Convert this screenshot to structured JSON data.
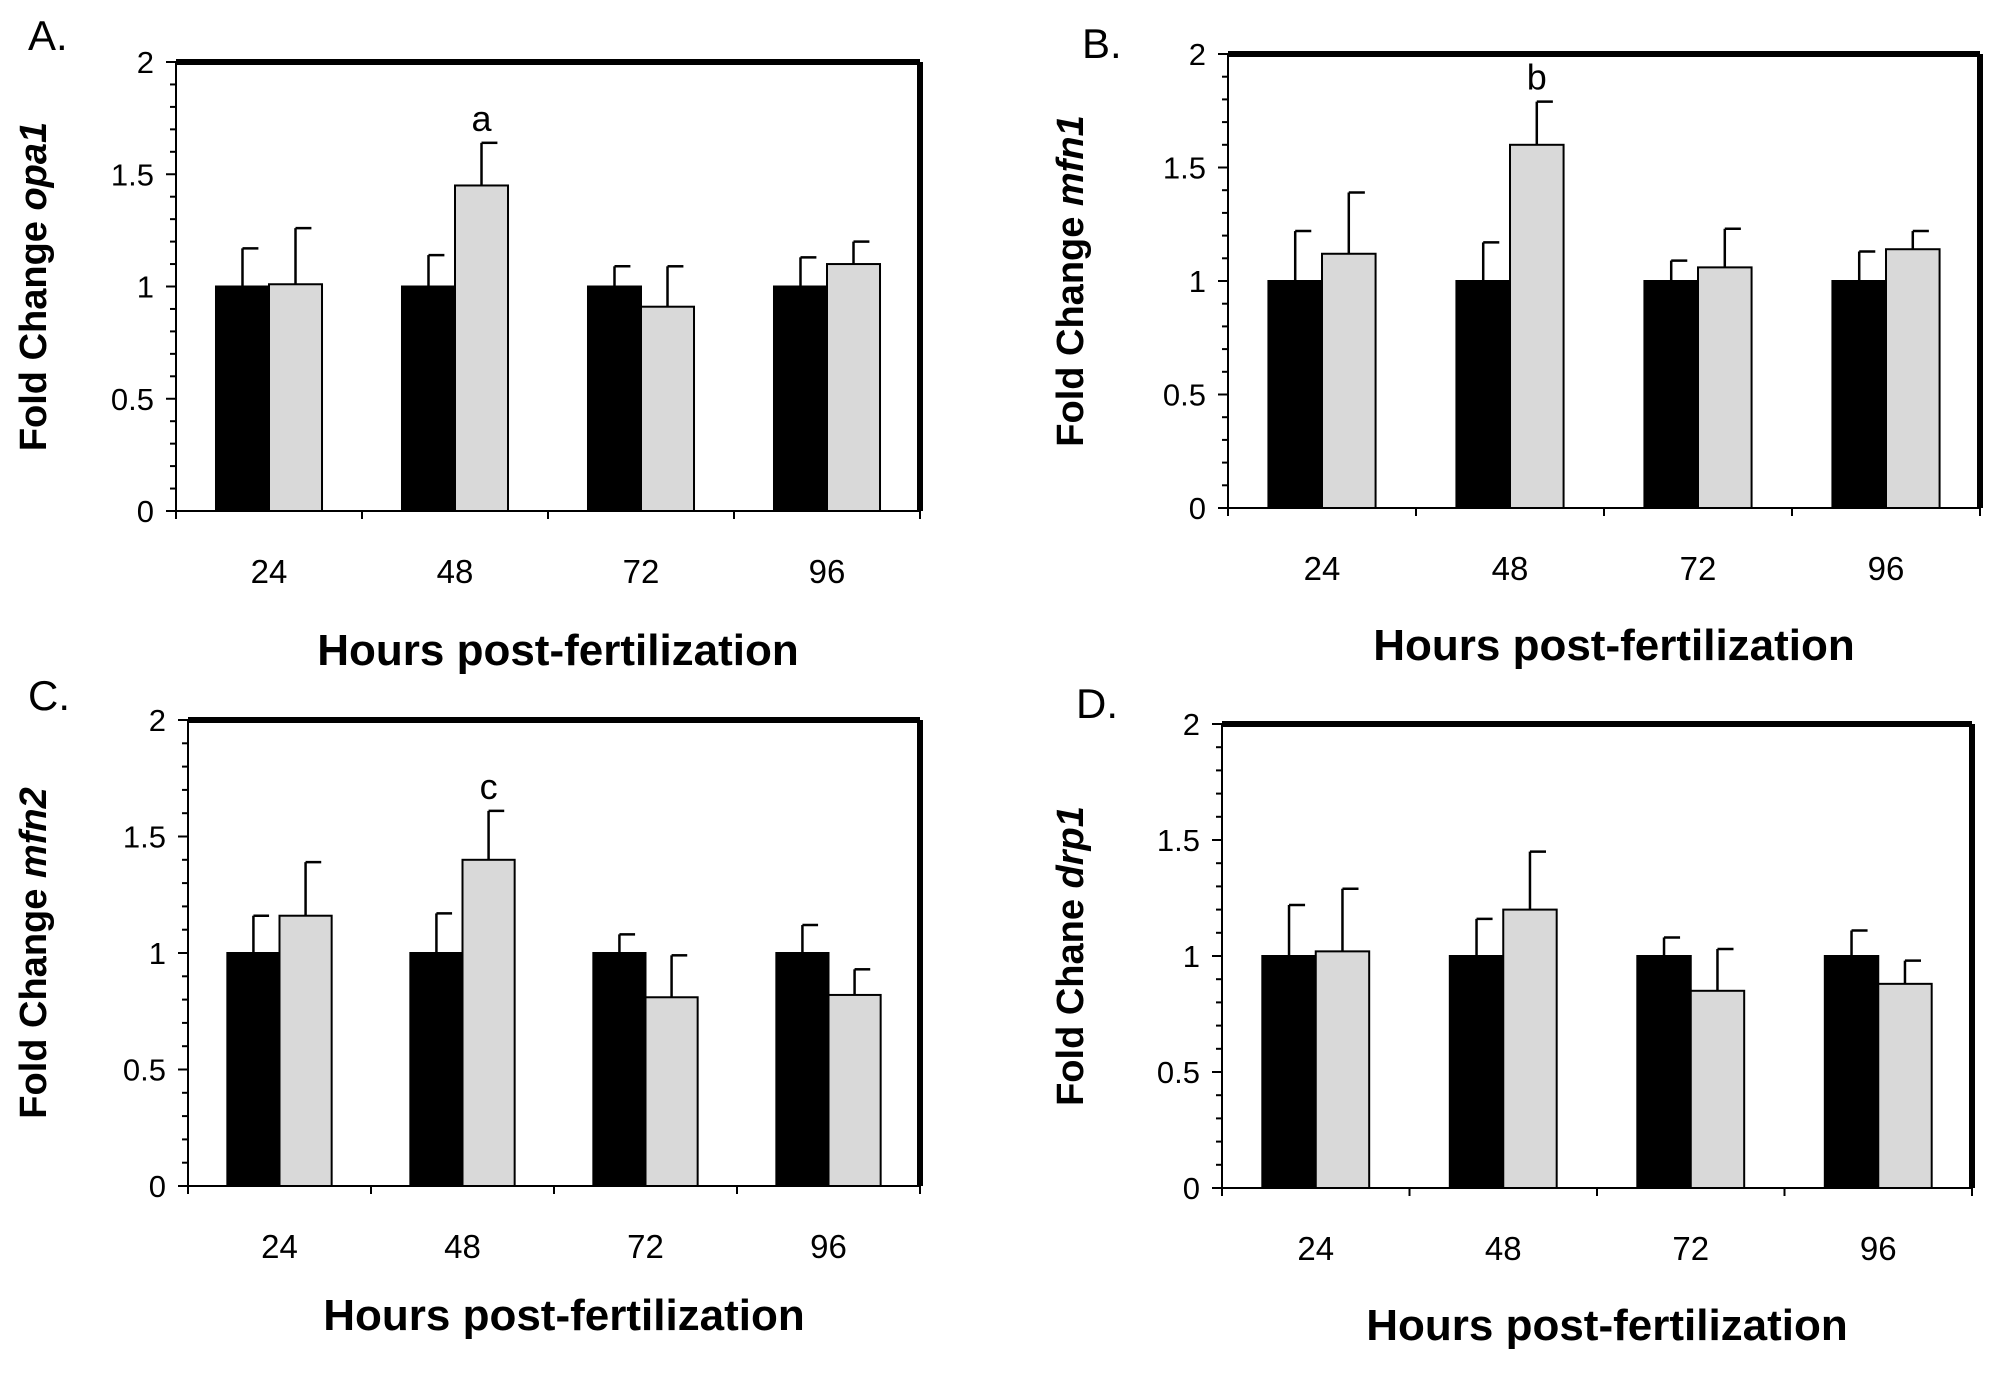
{
  "chart_data": [
    {
      "type": "bar",
      "panel_label": "A.",
      "ylabel": [
        "Fold Change ",
        "opa1"
      ],
      "xlabel": "Hours post-fertilization",
      "categories": [
        "24",
        "48",
        "72",
        "96"
      ],
      "ylim": [
        0,
        2
      ],
      "yticks": [
        "0",
        "0.5",
        "1",
        "1.5",
        "2"
      ],
      "series": [
        {
          "values": [
            1.0,
            1.0,
            1.0,
            1.0
          ],
          "errors": [
            0.17,
            0.14,
            0.09,
            0.13
          ],
          "color": "#000000"
        },
        {
          "values": [
            1.01,
            1.45,
            0.91,
            1.1
          ],
          "errors": [
            0.25,
            0.19,
            0.18,
            0.1
          ],
          "color": "#d9d9d9"
        }
      ],
      "annotations": [
        {
          "category": "48",
          "series": 1,
          "text": "a"
        }
      ]
    },
    {
      "type": "bar",
      "panel_label": "B.",
      "ylabel": [
        "Fold Change ",
        "mfn1"
      ],
      "xlabel": "Hours post-fertilization",
      "categories": [
        "24",
        "48",
        "72",
        "96"
      ],
      "ylim": [
        0,
        2
      ],
      "yticks": [
        "0",
        "0.5",
        "1",
        "1.5",
        "2"
      ],
      "series": [
        {
          "values": [
            1.0,
            1.0,
            1.0,
            1.0
          ],
          "errors": [
            0.22,
            0.17,
            0.09,
            0.13
          ],
          "color": "#000000"
        },
        {
          "values": [
            1.12,
            1.6,
            1.06,
            1.14
          ],
          "errors": [
            0.27,
            0.19,
            0.17,
            0.08
          ],
          "color": "#d9d9d9"
        }
      ],
      "annotations": [
        {
          "category": "48",
          "series": 1,
          "text": "b"
        }
      ]
    },
    {
      "type": "bar",
      "panel_label": "C.",
      "ylabel": [
        "Fold Change ",
        "mfn2"
      ],
      "xlabel": "Hours post-fertilization",
      "categories": [
        "24",
        "48",
        "72",
        "96"
      ],
      "ylim": [
        0,
        2
      ],
      "yticks": [
        "0",
        "0.5",
        "1",
        "1.5",
        "2"
      ],
      "series": [
        {
          "values": [
            1.0,
            1.0,
            1.0,
            1.0
          ],
          "errors": [
            0.16,
            0.17,
            0.08,
            0.12
          ],
          "color": "#000000"
        },
        {
          "values": [
            1.16,
            1.4,
            0.81,
            0.82
          ],
          "errors": [
            0.23,
            0.21,
            0.18,
            0.11
          ],
          "color": "#d9d9d9"
        }
      ],
      "annotations": [
        {
          "category": "48",
          "series": 1,
          "text": "c"
        }
      ]
    },
    {
      "type": "bar",
      "panel_label": "D.",
      "ylabel": [
        "Fold Chane ",
        "drp1"
      ],
      "xlabel": "Hours post-fertilization",
      "categories": [
        "24",
        "48",
        "72",
        "96"
      ],
      "ylim": [
        0,
        2
      ],
      "yticks": [
        "0",
        "0.5",
        "1",
        "1.5",
        "2"
      ],
      "series": [
        {
          "values": [
            1.0,
            1.0,
            1.0,
            1.0
          ],
          "errors": [
            0.22,
            0.16,
            0.08,
            0.11
          ],
          "color": "#000000"
        },
        {
          "values": [
            1.02,
            1.2,
            0.85,
            0.88
          ],
          "errors": [
            0.27,
            0.25,
            0.18,
            0.1
          ],
          "color": "#d9d9d9"
        }
      ],
      "annotations": []
    }
  ]
}
